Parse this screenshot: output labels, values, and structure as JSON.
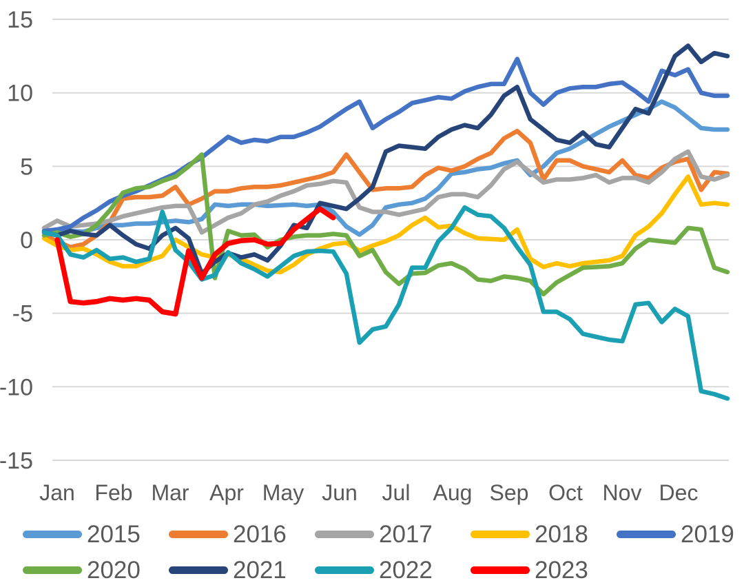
{
  "chart": {
    "title": "",
    "axis_color": "#595959",
    "grid_color": "#D9D9D9",
    "background": "#FFFFFF"
  },
  "chart_data": {
    "type": "line",
    "title": "",
    "xlabel": "",
    "ylabel": "",
    "ylim": [
      -15,
      15
    ],
    "y_ticks": [
      15,
      10,
      5,
      0,
      -5,
      -10,
      -15
    ],
    "grid": true,
    "legend_position": "bottom",
    "x_resolution": "weekly, 53 points Jan-Dec",
    "months": [
      "Jan",
      "Feb",
      "Mar",
      "Apr",
      "May",
      "Jun",
      "Jul",
      "Aug",
      "Sep",
      "Oct",
      "Nov",
      "Dec"
    ],
    "series": [
      {
        "name": "2015",
        "color": "#5B9BD5",
        "values": [
          0.6,
          0.7,
          0.6,
          0.55,
          0.8,
          1.0,
          1.0,
          1.1,
          1.1,
          1.2,
          1.3,
          1.2,
          1.4,
          2.4,
          2.3,
          2.4,
          2.4,
          2.3,
          2.35,
          2.4,
          2.3,
          2.4,
          1.9,
          0.9,
          0.35,
          1.0,
          2.2,
          2.4,
          2.5,
          2.8,
          3.5,
          4.5,
          4.6,
          4.8,
          4.9,
          5.2,
          5.4,
          4.4,
          5.0,
          5.9,
          6.2,
          6.7,
          7.2,
          7.7,
          8.1,
          8.5,
          8.9,
          9.4,
          9.0,
          8.3,
          7.6,
          7.5,
          7.5
        ]
      },
      {
        "name": "2016",
        "color": "#ED7D31",
        "values": [
          0.3,
          -0.1,
          -0.5,
          -0.3,
          0.3,
          1.2,
          2.8,
          2.9,
          2.9,
          3.0,
          3.6,
          2.4,
          2.8,
          3.3,
          3.3,
          3.5,
          3.6,
          3.6,
          3.7,
          3.9,
          4.1,
          4.3,
          4.6,
          5.8,
          4.6,
          3.4,
          3.5,
          3.5,
          3.6,
          4.4,
          4.9,
          4.7,
          5.0,
          5.5,
          5.9,
          6.9,
          7.4,
          6.6,
          4.1,
          5.4,
          5.4,
          5.0,
          4.8,
          4.6,
          5.4,
          4.4,
          4.2,
          4.9,
          5.3,
          5.5,
          3.4,
          4.6,
          4.5
        ]
      },
      {
        "name": "2017",
        "color": "#A5A5A5",
        "values": [
          0.8,
          1.3,
          0.9,
          1.0,
          1.1,
          1.3,
          1.6,
          1.8,
          2.0,
          2.2,
          2.3,
          2.3,
          0.5,
          1.0,
          1.5,
          1.8,
          2.4,
          2.6,
          3.0,
          3.3,
          3.7,
          3.8,
          4.0,
          3.9,
          2.2,
          1.9,
          1.9,
          1.7,
          1.9,
          2.1,
          2.9,
          3.1,
          3.1,
          2.9,
          3.7,
          4.8,
          5.3,
          4.6,
          3.9,
          4.1,
          4.1,
          4.2,
          4.4,
          3.9,
          4.2,
          4.2,
          3.9,
          4.6,
          5.5,
          6.0,
          4.3,
          4.1,
          4.4
        ]
      },
      {
        "name": "2018",
        "color": "#FFC000",
        "values": [
          0.1,
          -0.4,
          -0.7,
          -0.6,
          -1.0,
          -1.5,
          -1.8,
          -1.8,
          -1.4,
          -1.1,
          0.0,
          -0.5,
          -1.0,
          -1.2,
          -1.0,
          -1.3,
          -1.7,
          -2.1,
          -2.2,
          -1.7,
          -1.0,
          -0.6,
          -0.3,
          -0.2,
          -0.75,
          -0.4,
          -0.1,
          0.3,
          1.0,
          1.5,
          0.85,
          0.95,
          0.45,
          0.1,
          0.05,
          0.0,
          0.7,
          -1.3,
          -1.85,
          -1.6,
          -1.8,
          -1.6,
          -1.5,
          -1.4,
          -1.1,
          0.3,
          0.9,
          1.8,
          3.1,
          4.3,
          2.4,
          2.5,
          2.4
        ]
      },
      {
        "name": "2019",
        "color": "#4472C4",
        "values": [
          0.6,
          0.7,
          0.9,
          1.5,
          2.0,
          2.6,
          3.0,
          3.3,
          3.7,
          4.1,
          4.5,
          5.1,
          5.6,
          6.3,
          7.0,
          6.6,
          6.8,
          6.7,
          7.0,
          7.0,
          7.3,
          7.7,
          8.3,
          8.9,
          9.4,
          7.6,
          8.2,
          8.7,
          9.3,
          9.5,
          9.7,
          9.6,
          10.1,
          10.4,
          10.6,
          10.6,
          12.3,
          10.0,
          9.2,
          10.0,
          10.3,
          10.4,
          10.4,
          10.6,
          10.7,
          10.1,
          9.4,
          11.5,
          11.2,
          11.6,
          10.0,
          9.8,
          9.8
        ]
      },
      {
        "name": "2020",
        "color": "#70AD47",
        "values": [
          0.3,
          0.5,
          0.2,
          0.4,
          1.0,
          2.0,
          3.2,
          3.5,
          3.6,
          4.0,
          4.3,
          5.0,
          5.8,
          -2.6,
          0.6,
          0.3,
          0.35,
          -0.5,
          0.0,
          0.2,
          0.3,
          0.3,
          0.4,
          0.3,
          -1.1,
          -0.7,
          -2.2,
          -3.0,
          -2.3,
          -2.25,
          -1.75,
          -1.6,
          -2.0,
          -2.7,
          -2.8,
          -2.5,
          -2.6,
          -2.8,
          -3.7,
          -2.9,
          -2.4,
          -1.9,
          -1.85,
          -1.8,
          -1.6,
          -0.6,
          0.0,
          -0.1,
          -0.2,
          0.8,
          0.7,
          -1.9,
          -2.2
        ]
      },
      {
        "name": "2021",
        "color": "#264478",
        "values": [
          0.5,
          0.3,
          0.6,
          0.4,
          0.3,
          1.0,
          0.3,
          -0.3,
          -0.6,
          0.3,
          0.8,
          0.1,
          -2.3,
          -1.5,
          -0.9,
          -1.2,
          -1.0,
          -1.4,
          -0.4,
          1.0,
          0.8,
          2.5,
          2.3,
          2.1,
          2.8,
          3.6,
          6.0,
          6.4,
          6.3,
          6.2,
          7.0,
          7.5,
          7.8,
          7.6,
          8.5,
          9.8,
          10.4,
          8.2,
          7.5,
          6.8,
          6.6,
          7.3,
          6.5,
          6.3,
          7.6,
          8.9,
          8.6,
          10.5,
          12.5,
          13.2,
          12.1,
          12.7,
          12.5
        ]
      },
      {
        "name": "2022",
        "color": "#1AA0B2",
        "values": [
          0.5,
          0.3,
          -1.0,
          -1.2,
          -0.7,
          -1.3,
          -1.2,
          -1.5,
          -1.3,
          1.9,
          -0.7,
          -1.5,
          -2.7,
          -2.4,
          -0.85,
          -1.6,
          -2.0,
          -2.5,
          -1.8,
          -1.1,
          -0.8,
          -0.75,
          -0.8,
          -2.3,
          -7.0,
          -6.1,
          -5.9,
          -4.4,
          -1.9,
          -1.9,
          -0.1,
          0.8,
          2.2,
          1.7,
          1.6,
          0.8,
          -0.5,
          -1.7,
          -4.9,
          -4.9,
          -5.4,
          -6.4,
          -6.6,
          -6.8,
          -6.9,
          -4.4,
          -4.3,
          -5.6,
          -4.7,
          -5.2,
          -10.3,
          -10.5,
          -10.8
        ]
      },
      {
        "name": "2023",
        "color": "#FF0000",
        "values": [
          null,
          0.0,
          -4.2,
          -4.3,
          -4.2,
          -4.0,
          -4.1,
          -4.0,
          -4.1,
          -4.9,
          -5.05,
          -0.75,
          -2.6,
          -1.0,
          -0.25,
          -0.05,
          0.0,
          -0.3,
          -0.25,
          0.7,
          1.4,
          2.1,
          1.5,
          null,
          null,
          null,
          null,
          null,
          null,
          null,
          null,
          null,
          null,
          null,
          null,
          null,
          null,
          null,
          null,
          null,
          null,
          null,
          null,
          null,
          null,
          null,
          null,
          null,
          null,
          null,
          null,
          null,
          null
        ]
      }
    ],
    "legend_rows": [
      [
        "2015",
        "2016",
        "2017",
        "2018",
        "2019"
      ],
      [
        "2020",
        "2021",
        "2022",
        "2023"
      ]
    ]
  }
}
